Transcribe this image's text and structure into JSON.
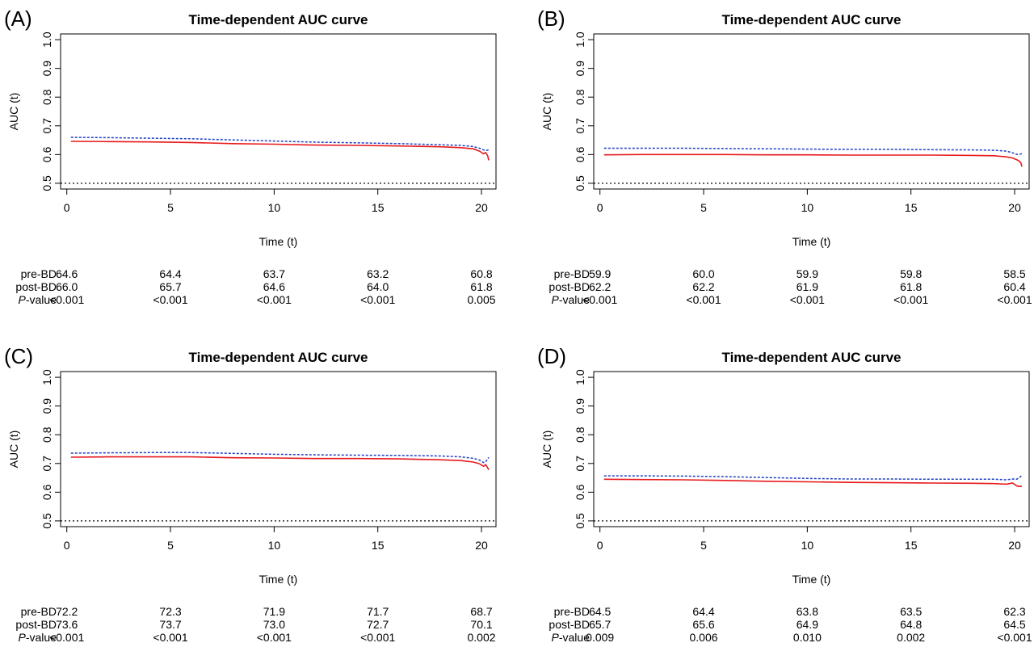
{
  "colors": {
    "pre_bd": "#e8191c",
    "post_bd": "#1f3fbf",
    "reference": "#000000",
    "frame": "#000000"
  },
  "chart_data": [
    {
      "panel_label": "(A)",
      "type": "line",
      "title": "Time-dependent AUC curve",
      "xlabel": "Time (t)",
      "ylabel": "AUC (t)",
      "xlim": [
        -0.3,
        20.7
      ],
      "ylim": [
        0.48,
        1.02
      ],
      "x_ticks": [
        "0",
        "5",
        "10",
        "15",
        "20"
      ],
      "y_ticks": [
        "0.5",
        "0.6",
        "0.7",
        "0.8",
        "0.9",
        "1.0"
      ],
      "reference_line": 0.5,
      "series": [
        {
          "style": "solid",
          "color": "#e8191c",
          "x": [
            0.2,
            2,
            4,
            6,
            8,
            10,
            12,
            14,
            16,
            18,
            19,
            19.6,
            19.9,
            20.1,
            20.2,
            20.3,
            20.35
          ],
          "y": [
            0.646,
            0.645,
            0.644,
            0.642,
            0.638,
            0.636,
            0.633,
            0.632,
            0.63,
            0.627,
            0.624,
            0.62,
            0.612,
            0.603,
            0.607,
            0.596,
            0.58
          ]
        },
        {
          "style": "dashed",
          "color": "#1f3fbf",
          "x": [
            0.2,
            2,
            4,
            6,
            8,
            10,
            12,
            14,
            16,
            18,
            19,
            19.6,
            19.9,
            20.1,
            20.2,
            20.35
          ],
          "y": [
            0.66,
            0.659,
            0.657,
            0.655,
            0.651,
            0.647,
            0.643,
            0.641,
            0.638,
            0.634,
            0.632,
            0.628,
            0.622,
            0.616,
            0.614,
            0.616
          ]
        }
      ],
      "table": {
        "rows": [
          {
            "label": "pre-BD",
            "values": [
              "64.6",
              "64.4",
              "63.7",
              "63.2",
              "60.8"
            ]
          },
          {
            "label": "post-BD",
            "values": [
              "66.0",
              "65.7",
              "64.6",
              "64.0",
              "61.8"
            ]
          },
          {
            "label_italic": "P",
            "label_rest": "-value",
            "values": [
              "<0.001",
              "<0.001",
              "<0.001",
              "<0.001",
              "0.005"
            ]
          }
        ]
      }
    },
    {
      "panel_label": "(B)",
      "type": "line",
      "title": "Time-dependent AUC curve",
      "xlabel": "Time (t)",
      "ylabel": "AUC (t)",
      "xlim": [
        -0.3,
        20.7
      ],
      "ylim": [
        0.48,
        1.02
      ],
      "x_ticks": [
        "0",
        "5",
        "10",
        "15",
        "20"
      ],
      "y_ticks": [
        "0.5",
        "0.6",
        "0.7",
        "0.8",
        "0.9",
        "1.0"
      ],
      "reference_line": 0.5,
      "series": [
        {
          "style": "solid",
          "color": "#e8191c",
          "x": [
            0.2,
            2,
            4,
            6,
            8,
            10,
            12,
            14,
            16,
            18,
            19,
            19.6,
            19.9,
            20.1,
            20.2,
            20.3,
            20.35
          ],
          "y": [
            0.599,
            0.6,
            0.6,
            0.6,
            0.599,
            0.599,
            0.598,
            0.598,
            0.598,
            0.597,
            0.596,
            0.592,
            0.588,
            0.582,
            0.578,
            0.572,
            0.558
          ]
        },
        {
          "style": "dashed",
          "color": "#1f3fbf",
          "x": [
            0.2,
            2,
            4,
            6,
            8,
            10,
            12,
            14,
            16,
            18,
            19,
            19.6,
            19.9,
            20.1,
            20.2,
            20.35
          ],
          "y": [
            0.622,
            0.622,
            0.622,
            0.621,
            0.62,
            0.619,
            0.618,
            0.618,
            0.617,
            0.616,
            0.615,
            0.612,
            0.606,
            0.601,
            0.6,
            0.603
          ]
        }
      ],
      "table": {
        "rows": [
          {
            "label": "pre-BD",
            "values": [
              "59.9",
              "60.0",
              "59.9",
              "59.8",
              "58.5"
            ]
          },
          {
            "label": "post-BD",
            "values": [
              "62.2",
              "62.2",
              "61.9",
              "61.8",
              "60.4"
            ]
          },
          {
            "label_italic": "P",
            "label_rest": "-value",
            "values": [
              "<0.001",
              "<0.001",
              "<0.001",
              "<0.001",
              "<0.001"
            ]
          }
        ]
      }
    },
    {
      "panel_label": "(C)",
      "type": "line",
      "title": "Time-dependent AUC curve",
      "xlabel": "Time (t)",
      "ylabel": "AUC (t)",
      "xlim": [
        -0.3,
        20.7
      ],
      "ylim": [
        0.48,
        1.02
      ],
      "x_ticks": [
        "0",
        "5",
        "10",
        "15",
        "20"
      ],
      "y_ticks": [
        "0.5",
        "0.6",
        "0.7",
        "0.8",
        "0.9",
        "1.0"
      ],
      "reference_line": 0.5,
      "series": [
        {
          "style": "solid",
          "color": "#e8191c",
          "x": [
            0.2,
            2,
            4,
            6,
            8,
            10,
            12,
            14,
            16,
            18,
            19,
            19.6,
            19.9,
            20.1,
            20.2,
            20.3,
            20.35
          ],
          "y": [
            0.722,
            0.723,
            0.723,
            0.723,
            0.72,
            0.719,
            0.717,
            0.717,
            0.716,
            0.713,
            0.71,
            0.705,
            0.699,
            0.69,
            0.696,
            0.685,
            0.678
          ]
        },
        {
          "style": "dashed",
          "color": "#1f3fbf",
          "x": [
            0.2,
            2,
            4,
            6,
            8,
            10,
            12,
            14,
            16,
            18,
            19,
            19.6,
            19.9,
            20.1,
            20.2,
            20.35
          ],
          "y": [
            0.736,
            0.737,
            0.738,
            0.738,
            0.735,
            0.732,
            0.73,
            0.729,
            0.728,
            0.726,
            0.723,
            0.718,
            0.712,
            0.703,
            0.706,
            0.721
          ]
        }
      ],
      "table": {
        "rows": [
          {
            "label": "pre-BD",
            "values": [
              "72.2",
              "72.3",
              "71.9",
              "71.7",
              "68.7"
            ]
          },
          {
            "label": "post-BD",
            "values": [
              "73.6",
              "73.7",
              "73.0",
              "72.7",
              "70.1"
            ]
          },
          {
            "label_italic": "P",
            "label_rest": "-value",
            "values": [
              "<0.001",
              "<0.001",
              "<0.001",
              "<0.001",
              "0.002"
            ]
          }
        ]
      }
    },
    {
      "panel_label": "(D)",
      "type": "line",
      "title": "Time-dependent AUC curve",
      "xlabel": "Time (t)",
      "ylabel": "AUC (t)",
      "xlim": [
        -0.3,
        20.7
      ],
      "ylim": [
        0.48,
        1.02
      ],
      "x_ticks": [
        "0",
        "5",
        "10",
        "15",
        "20"
      ],
      "y_ticks": [
        "0.5",
        "0.6",
        "0.7",
        "0.8",
        "0.9",
        "1.0"
      ],
      "reference_line": 0.5,
      "series": [
        {
          "style": "solid",
          "color": "#e8191c",
          "x": [
            0.2,
            2,
            4,
            6,
            8,
            10,
            12,
            14,
            16,
            18,
            19,
            19.6,
            19.9,
            20.1,
            20.2,
            20.35
          ],
          "y": [
            0.645,
            0.644,
            0.643,
            0.641,
            0.638,
            0.636,
            0.634,
            0.633,
            0.632,
            0.631,
            0.63,
            0.628,
            0.632,
            0.622,
            0.62,
            0.621
          ]
        },
        {
          "style": "dashed",
          "color": "#1f3fbf",
          "x": [
            0.2,
            2,
            4,
            6,
            8,
            10,
            12,
            14,
            16,
            18,
            19,
            19.6,
            19.9,
            20.1,
            20.2,
            20.35
          ],
          "y": [
            0.657,
            0.657,
            0.656,
            0.654,
            0.651,
            0.648,
            0.646,
            0.646,
            0.645,
            0.645,
            0.645,
            0.643,
            0.646,
            0.645,
            0.65,
            0.658
          ]
        }
      ],
      "table": {
        "rows": [
          {
            "label": "pre-BD",
            "values": [
              "64.5",
              "64.4",
              "63.8",
              "63.5",
              "62.3"
            ]
          },
          {
            "label": "post-BD",
            "values": [
              "65.7",
              "65.6",
              "64.9",
              "64.8",
              "64.5"
            ]
          },
          {
            "label_italic": "P",
            "label_rest": "-value",
            "values": [
              "0.009",
              "0.006",
              "0.010",
              "0.002",
              "<0.001"
            ]
          }
        ]
      }
    }
  ]
}
